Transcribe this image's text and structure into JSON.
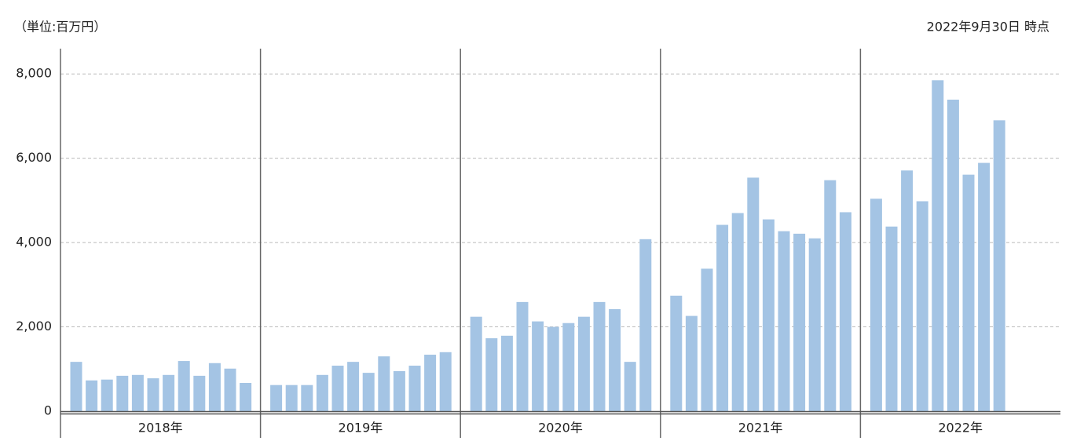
{
  "chart_data": {
    "type": "grouped-bar",
    "unit_note": "（単位:百万円）",
    "as_of": "2022年9月30日 時点",
    "color": "#a4c4e4",
    "ylim": [
      0,
      8600
    ],
    "yticks": [
      0,
      {
        "value": 2000,
        "label": "2,000"
      },
      {
        "value": 4000,
        "label": "4,000"
      },
      {
        "value": 6000,
        "label": "6,000"
      },
      {
        "value": 8000,
        "label": "8,000"
      }
    ],
    "grid": true,
    "groups": [
      {
        "name": "2018年",
        "values": [
          1170,
          730,
          750,
          840,
          860,
          780,
          860,
          1190,
          840,
          1140,
          1010,
          670
        ]
      },
      {
        "name": "2019年",
        "values": [
          620,
          620,
          620,
          860,
          1080,
          1170,
          910,
          1300,
          950,
          1080,
          1340,
          1400
        ]
      },
      {
        "name": "2020年",
        "values": [
          2240,
          1730,
          1790,
          2590,
          2130,
          2000,
          2090,
          2240,
          2590,
          2420,
          1170,
          4080
        ]
      },
      {
        "name": "2021年",
        "values": [
          2740,
          2260,
          3380,
          4420,
          4700,
          5540,
          4550,
          4270,
          4210,
          4100,
          5480,
          4720
        ]
      },
      {
        "name": "2022年",
        "values": [
          5040,
          4380,
          5710,
          4980,
          7850,
          7390,
          5610,
          5890,
          6900
        ]
      }
    ]
  }
}
